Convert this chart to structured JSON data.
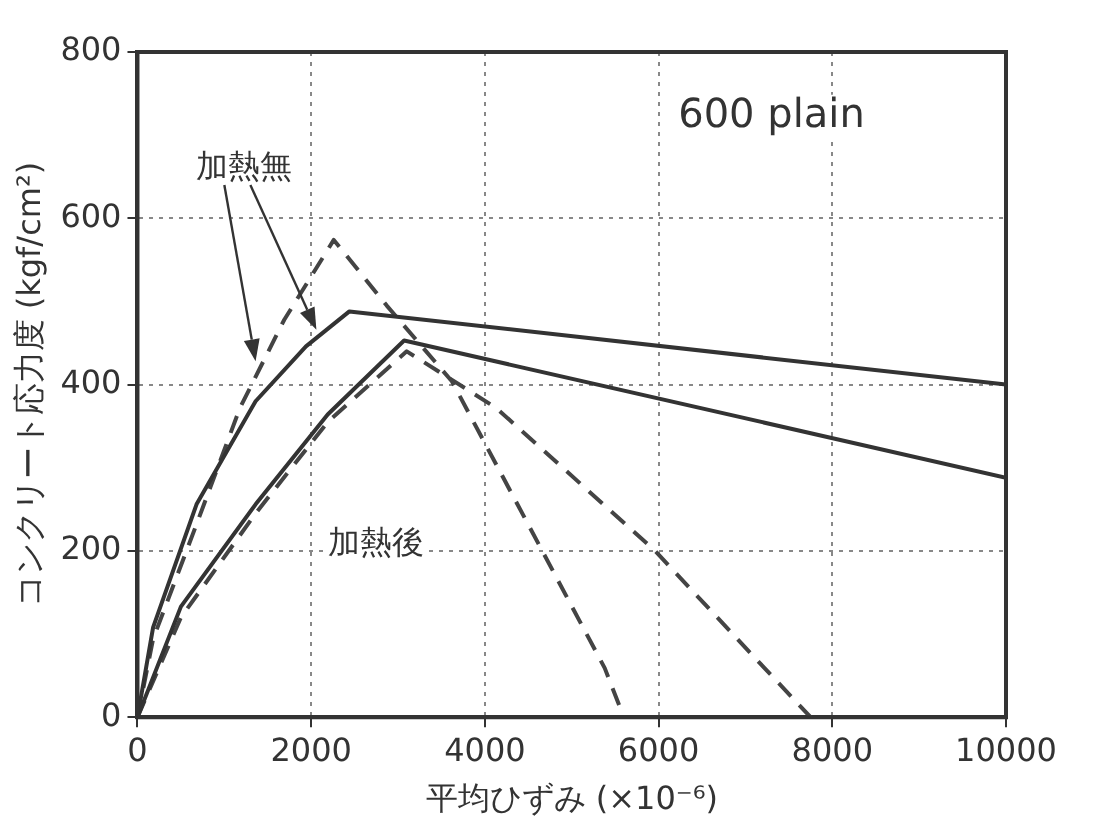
{
  "chart_data": {
    "type": "line",
    "xlabel": "平均ひずみ (×10⁻⁶)",
    "ylabel": "コンクリート応力度 (kgf/cm²)",
    "xlim": [
      0,
      10000
    ],
    "xticks": [
      0,
      2000,
      4000,
      6000,
      8000,
      10000
    ],
    "ylim": [
      0,
      800
    ],
    "yticks": [
      0,
      200,
      400,
      600,
      800
    ],
    "grid": true,
    "legend": false,
    "marker": "none",
    "series": [
      {
        "color": "#333333",
        "line_style": "solid",
        "x": [
          0,
          180,
          680,
          1360,
          1940,
          2440,
          10000
        ],
        "values": [
          0,
          108,
          256,
          380,
          446,
          488,
          400
        ]
      },
      {
        "color": "#333333",
        "line_style": "solid",
        "x": [
          0,
          500,
          1360,
          2190,
          3070,
          10000
        ],
        "values": [
          0,
          133,
          256,
          364,
          453,
          288
        ]
      },
      {
        "color": "#444444",
        "line_style": "dashed",
        "x": [
          0,
          180,
          680,
          1180,
          1690,
          2260,
          2870,
          3620,
          5380,
          5600
        ],
        "values": [
          0,
          94,
          232,
          372,
          478,
          574,
          495,
          404,
          59,
          0
        ]
      },
      {
        "color": "#444444",
        "line_style": "dashed",
        "x": [
          0,
          500,
          1360,
          2190,
          3100,
          4130,
          5960,
          7220,
          7750
        ],
        "values": [
          0,
          120,
          245,
          355,
          440,
          372,
          200,
          59,
          0
        ]
      }
    ],
    "annotations": [
      "600 plain",
      "加熱無",
      "加熱後"
    ]
  }
}
